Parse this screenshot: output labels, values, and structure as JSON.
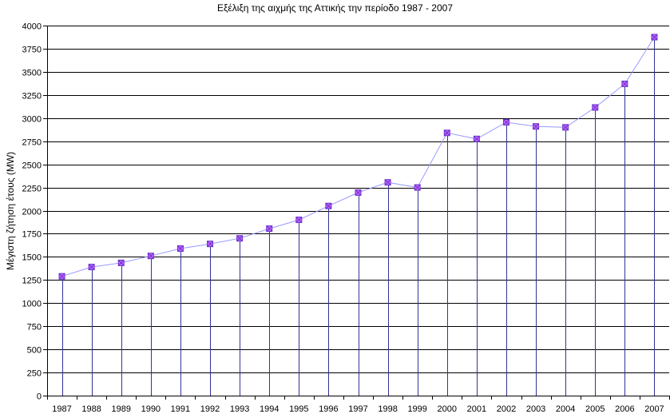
{
  "chart_data": {
    "type": "line",
    "title": "Εξέλιξη της αιχμής της Αττικής την περίοδο 1987 - 2007",
    "xlabel": "",
    "ylabel": "Μέγιστη ζήτηση έτους (MW)",
    "categories": [
      "1987",
      "1988",
      "1989",
      "1990",
      "1991",
      "1992",
      "1993",
      "1994",
      "1995",
      "1996",
      "1997",
      "1998",
      "1999",
      "2000",
      "2001",
      "2002",
      "2003",
      "2004",
      "2005",
      "2006",
      "2007"
    ],
    "series": [
      {
        "values": [
          1290,
          1390,
          1435,
          1510,
          1590,
          1640,
          1700,
          1805,
          1900,
          2050,
          2195,
          2305,
          2250,
          2840,
          2775,
          2955,
          2910,
          2900,
          3115,
          3370,
          3875
        ]
      }
    ],
    "ylim": [
      0,
      4000
    ],
    "yticks": [
      0,
      250,
      500,
      750,
      1000,
      1250,
      1500,
      1750,
      2000,
      2250,
      2500,
      2750,
      3000,
      3250,
      3500,
      3750,
      4000
    ],
    "grid": true,
    "drop_lines": true,
    "colors": {
      "line": "#9999ff",
      "marker_fill": "#cc66ff",
      "marker_edge": "#6633cc",
      "grid": "#000000",
      "axis": "#000000"
    }
  }
}
